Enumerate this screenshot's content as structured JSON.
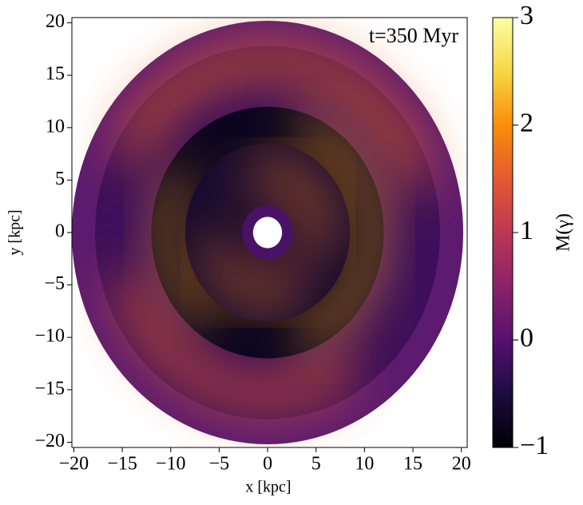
{
  "chart_data": {
    "type": "disk-map",
    "annotation": "t=350 Myr",
    "xlabel": "x [kpc]",
    "ylabel": "y [kpc]",
    "xlim": [
      -20.2,
      20.6
    ],
    "ylim": [
      -20.5,
      20.5
    ],
    "xticks": [
      {
        "value": -20,
        "label": "−20"
      },
      {
        "value": -15,
        "label": "−15"
      },
      {
        "value": -10,
        "label": "−10"
      },
      {
        "value": -5,
        "label": "−5"
      },
      0,
      5,
      10,
      15,
      20
    ],
    "yticks": [
      {
        "value": -20,
        "label": "−20"
      },
      {
        "value": -15,
        "label": "−15"
      },
      {
        "value": -10,
        "label": "−10"
      },
      {
        "value": -5,
        "label": "−5"
      },
      0,
      5,
      10,
      15,
      20
    ],
    "colorbar": {
      "label": "M(γ)",
      "colormap": "inferno",
      "lim": [
        -1,
        3
      ],
      "ticks": [
        {
          "value": -1,
          "label": "−1"
        },
        0,
        1,
        2,
        3
      ]
    }
  }
}
